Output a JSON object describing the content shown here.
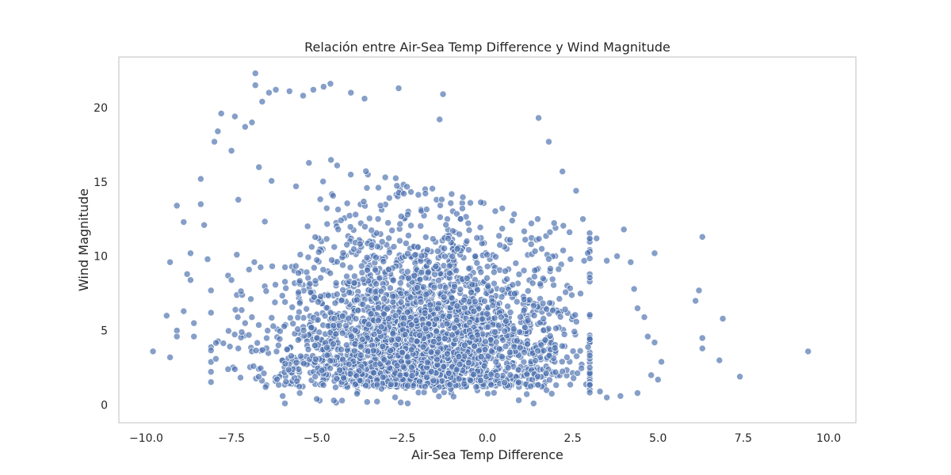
{
  "chart_data": {
    "type": "scatter",
    "title": "Relación entre Air-Sea Temp Difference y Wind Magnitude",
    "xlabel": "Air-Sea Temp Difference",
    "ylabel": "Wind Magnitude",
    "xlim": [
      -10.8,
      10.8
    ],
    "ylim": [
      -1.2,
      23.4
    ],
    "x_ticks": [
      -10.0,
      -7.5,
      -5.0,
      -2.5,
      0.0,
      2.5,
      5.0,
      7.5,
      10.0
    ],
    "x_tick_labels": [
      "−10.0",
      "−7.5",
      "−5.0",
      "−2.5",
      "0.0",
      "2.5",
      "5.0",
      "7.5",
      "10.0"
    ],
    "y_ticks": [
      0,
      5,
      10,
      15,
      20
    ],
    "y_tick_labels": [
      "0",
      "5",
      "10",
      "15",
      "20"
    ],
    "grid": false,
    "legend": "none",
    "marker_color": "#4c72b0",
    "marker_edge_color": "#ffffff",
    "series": [
      {
        "points": [
          [
            -9.8,
            3.6
          ],
          [
            -9.4,
            6.0
          ],
          [
            -9.3,
            3.2
          ],
          [
            -9.3,
            9.6
          ],
          [
            -9.1,
            13.4
          ],
          [
            -9.1,
            5.0
          ],
          [
            -9.1,
            4.6
          ],
          [
            -8.9,
            6.3
          ],
          [
            -8.9,
            12.3
          ],
          [
            -8.8,
            8.8
          ],
          [
            -8.7,
            10.2
          ],
          [
            -8.7,
            8.4
          ],
          [
            -8.6,
            5.5
          ],
          [
            -8.6,
            4.6
          ],
          [
            -8.4,
            15.2
          ],
          [
            -8.4,
            13.5
          ],
          [
            -8.3,
            12.1
          ],
          [
            -8.2,
            9.8
          ],
          [
            -8.1,
            7.7
          ],
          [
            -8.1,
            6.2
          ],
          [
            -8.0,
            17.7
          ],
          [
            -7.8,
            19.6
          ],
          [
            -7.9,
            18.4
          ],
          [
            -7.5,
            17.1
          ],
          [
            -7.4,
            19.4
          ],
          [
            -7.3,
            13.8
          ],
          [
            -7.6,
            8.7
          ],
          [
            -7.5,
            8.4
          ],
          [
            -7.4,
            2.4
          ],
          [
            -7.3,
            3.8
          ],
          [
            -7.2,
            4.9
          ],
          [
            -7.1,
            5.5
          ],
          [
            -7.6,
            2.4
          ],
          [
            -6.8,
            22.3
          ],
          [
            -6.8,
            21.5
          ],
          [
            -6.6,
            20.4
          ],
          [
            -6.4,
            21.0
          ],
          [
            -6.9,
            19.0
          ],
          [
            -7.1,
            18.7
          ],
          [
            -6.2,
            21.2
          ],
          [
            -5.8,
            21.1
          ],
          [
            -5.4,
            20.8
          ],
          [
            -5.1,
            21.2
          ],
          [
            -4.8,
            21.4
          ],
          [
            -4.6,
            21.6
          ],
          [
            -4.0,
            21.0
          ],
          [
            -3.6,
            20.6
          ],
          [
            -2.6,
            21.3
          ],
          [
            -1.3,
            20.9
          ],
          [
            -1.4,
            19.2
          ],
          [
            -6.7,
            1.9
          ],
          [
            -6.5,
            1.2
          ],
          [
            -6.0,
            0.6
          ],
          [
            -5.5,
            0.8
          ],
          [
            -5.0,
            0.4
          ],
          [
            -4.5,
            0.3
          ],
          [
            1.5,
            19.3
          ],
          [
            1.8,
            17.7
          ],
          [
            2.2,
            15.7
          ],
          [
            2.6,
            14.4
          ],
          [
            2.8,
            12.5
          ],
          [
            3.2,
            11.2
          ],
          [
            3.5,
            9.7
          ],
          [
            3.8,
            10.0
          ],
          [
            4.0,
            11.8
          ],
          [
            4.2,
            9.6
          ],
          [
            4.3,
            7.8
          ],
          [
            4.4,
            6.5
          ],
          [
            4.6,
            5.9
          ],
          [
            4.7,
            4.6
          ],
          [
            4.9,
            10.2
          ],
          [
            4.9,
            4.2
          ],
          [
            5.1,
            2.9
          ],
          [
            5.0,
            1.7
          ],
          [
            4.8,
            2.0
          ],
          [
            4.4,
            0.8
          ],
          [
            3.9,
            0.6
          ],
          [
            3.5,
            0.5
          ],
          [
            3.3,
            0.9
          ],
          [
            6.1,
            7.0
          ],
          [
            6.2,
            7.7
          ],
          [
            6.3,
            11.3
          ],
          [
            6.3,
            4.5
          ],
          [
            6.3,
            3.8
          ],
          [
            6.9,
            5.8
          ],
          [
            6.8,
            3.0
          ],
          [
            7.4,
            1.9
          ],
          [
            9.4,
            3.6
          ]
        ],
        "cloud": {
          "count": 3000,
          "x_mean": -1.9,
          "x_sd": 2.1,
          "y_peak": 6,
          "y_max": 18.5
        }
      }
    ]
  }
}
